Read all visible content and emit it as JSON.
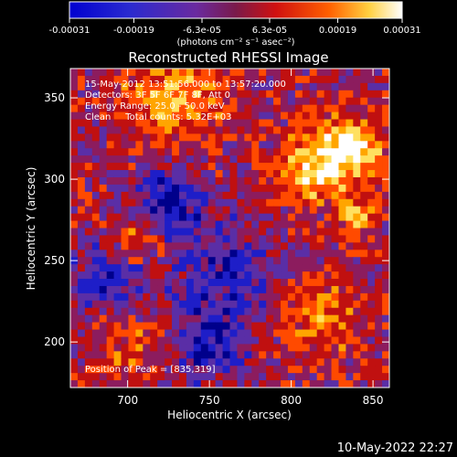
{
  "chart_data": {
    "type": "heatmap",
    "title": "Reconstructed RHESSI Image",
    "xlabel": "Heliocentric X (arcsec)",
    "ylabel": "Heliocentric Y (arcsec)",
    "xlim": [
      665,
      860
    ],
    "ylim": [
      172,
      368
    ],
    "x_ticks": [
      700,
      750,
      800,
      850
    ],
    "y_ticks": [
      200,
      250,
      300,
      350
    ],
    "colorbar": {
      "ticks": [
        "-0.00031",
        "-0.00019",
        "-6.3e-05",
        "6.3e-05",
        "0.00019",
        "0.00031"
      ],
      "tick_values": [
        -0.00031,
        -0.00019,
        -6.3e-05,
        6.3e-05,
        0.00019,
        0.00031
      ],
      "range": [
        -0.00031,
        0.00031
      ],
      "unit_label": "(photons cm⁻² s⁻¹ asec⁻²)"
    },
    "annotations": [
      "15-May-2012 13:51:56.000 to 13:57:20.000",
      "Detectors: 3F 5F 6F 7F 8F, Att 0",
      "Energy Range: 25.0 - 50.0 keV",
      "Clean     Total counts: 5.32E+03"
    ],
    "peak_label": "Position of Peak = [835,319]",
    "peak_position": [
      835,
      319
    ],
    "grid": false,
    "color_scale": [
      "#00008b",
      "#1e1ec8",
      "#5a2ea6",
      "#8c1c5e",
      "#c01010",
      "#ff4a00",
      "#ffa500",
      "#ffe060",
      "#ffffff"
    ]
  },
  "footer_timestamp": "10-May-2022 22:27"
}
